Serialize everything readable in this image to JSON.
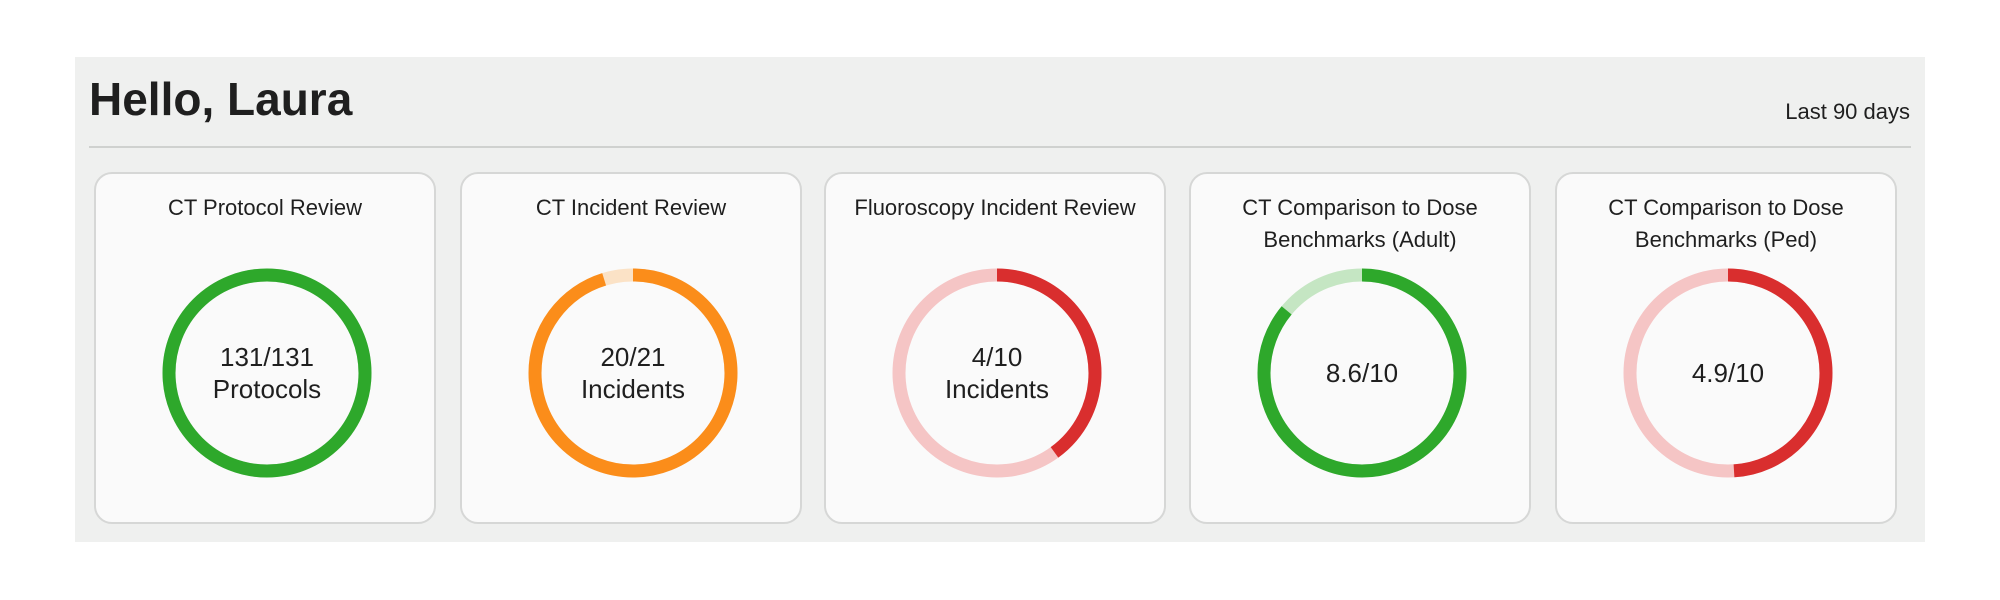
{
  "header": {
    "greeting": "Hello, Laura",
    "period": "Last 90 days"
  },
  "colors": {
    "panel_bg": "#eff0ef",
    "green": "#2ea82b",
    "green_light": "#c5e6c3",
    "orange": "#fb8d1a",
    "orange_light": "#fbe2c6",
    "red": "#d92e2e",
    "red_light": "#f5c5c5"
  },
  "cards": [
    {
      "title": "CT Protocol Review",
      "value": "131/131",
      "unit": "Protocols",
      "fraction": 1.0,
      "fill_color": "#2ea82b",
      "track_color": "#c5e6c3",
      "direction": "clockwise"
    },
    {
      "title": "CT Incident Review",
      "value": "20/21",
      "unit": "Incidents",
      "fraction": 0.952,
      "fill_color": "#fb8d1a",
      "track_color": "#fbe2c6",
      "direction": "clockwise"
    },
    {
      "title": "Fluoroscopy Incident Review",
      "value": "4/10",
      "unit": "Incidents",
      "fraction": 0.4,
      "fill_color": "#d92e2e",
      "track_color": "#f5c5c5",
      "direction": "clockwise"
    },
    {
      "title": "CT Comparison to Dose Benchmarks (Adult)",
      "value": "8.6/10",
      "unit": "",
      "fraction": 0.86,
      "fill_color": "#2ea82b",
      "track_color": "#c5e6c3",
      "direction": "clockwise"
    },
    {
      "title": "CT Comparison to Dose Benchmarks (Ped)",
      "value": "4.9/10",
      "unit": "",
      "fraction": 0.49,
      "fill_color": "#d92e2e",
      "track_color": "#f5c5c5",
      "direction": "clockwise"
    }
  ]
}
